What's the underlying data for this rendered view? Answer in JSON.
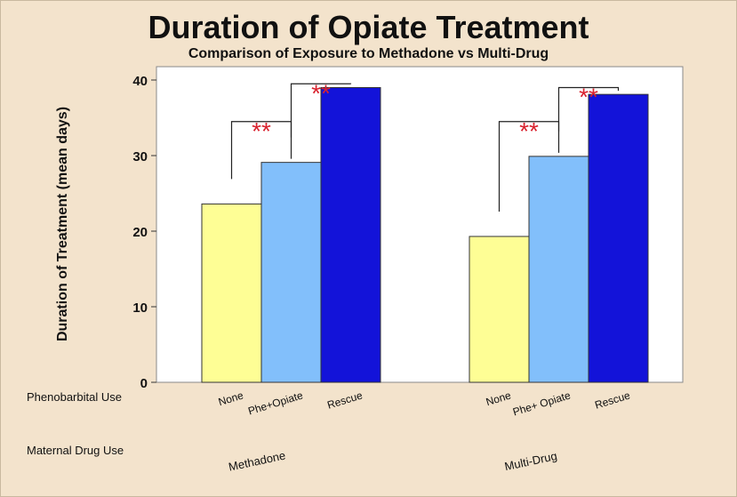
{
  "chart_data": {
    "type": "bar",
    "title": "Duration of Opiate Treatment",
    "subtitle": "Comparison of Exposure to Methadone vs Multi-Drug",
    "ylabel": "Duration of Treatment (mean days)",
    "ylim": [
      0,
      40
    ],
    "yticks": [
      0,
      10,
      20,
      30,
      40
    ],
    "row_labels": {
      "phenobarbital": "Phenobarbital Use",
      "maternal": "Maternal Drug Use"
    },
    "groups": [
      {
        "name": "Methadone",
        "bars": [
          {
            "label": "None",
            "value": 23.6,
            "color": "#fefe95"
          },
          {
            "label": "Phe+Opiate",
            "value": 29.1,
            "color": "#82bffb"
          },
          {
            "label": "Rescue",
            "value": 39.0,
            "color": "#1313d9"
          }
        ]
      },
      {
        "name": "Multi-Drug",
        "bars": [
          {
            "label": "None",
            "value": 19.3,
            "color": "#fefe95"
          },
          {
            "label": "Phe+ Opiate",
            "value": 29.9,
            "color": "#82bffb"
          },
          {
            "label": "Rescue",
            "value": 38.1,
            "color": "#1313d9"
          }
        ]
      }
    ],
    "significance_marker": "**",
    "significance_color": "#d9232f",
    "bracket_heights": [
      {
        "group": 0,
        "from": "None",
        "to": "Phe+Opiate",
        "level": 34.5
      },
      {
        "group": 0,
        "from": "Phe+Opiate",
        "to": "Rescue",
        "level": 39.5
      },
      {
        "group": 1,
        "from": "None",
        "to": "Phe+ Opiate",
        "level": 34.5
      },
      {
        "group": 1,
        "from": "Phe+ Opiate",
        "to": "Rescue",
        "level": 39.0
      }
    ]
  }
}
